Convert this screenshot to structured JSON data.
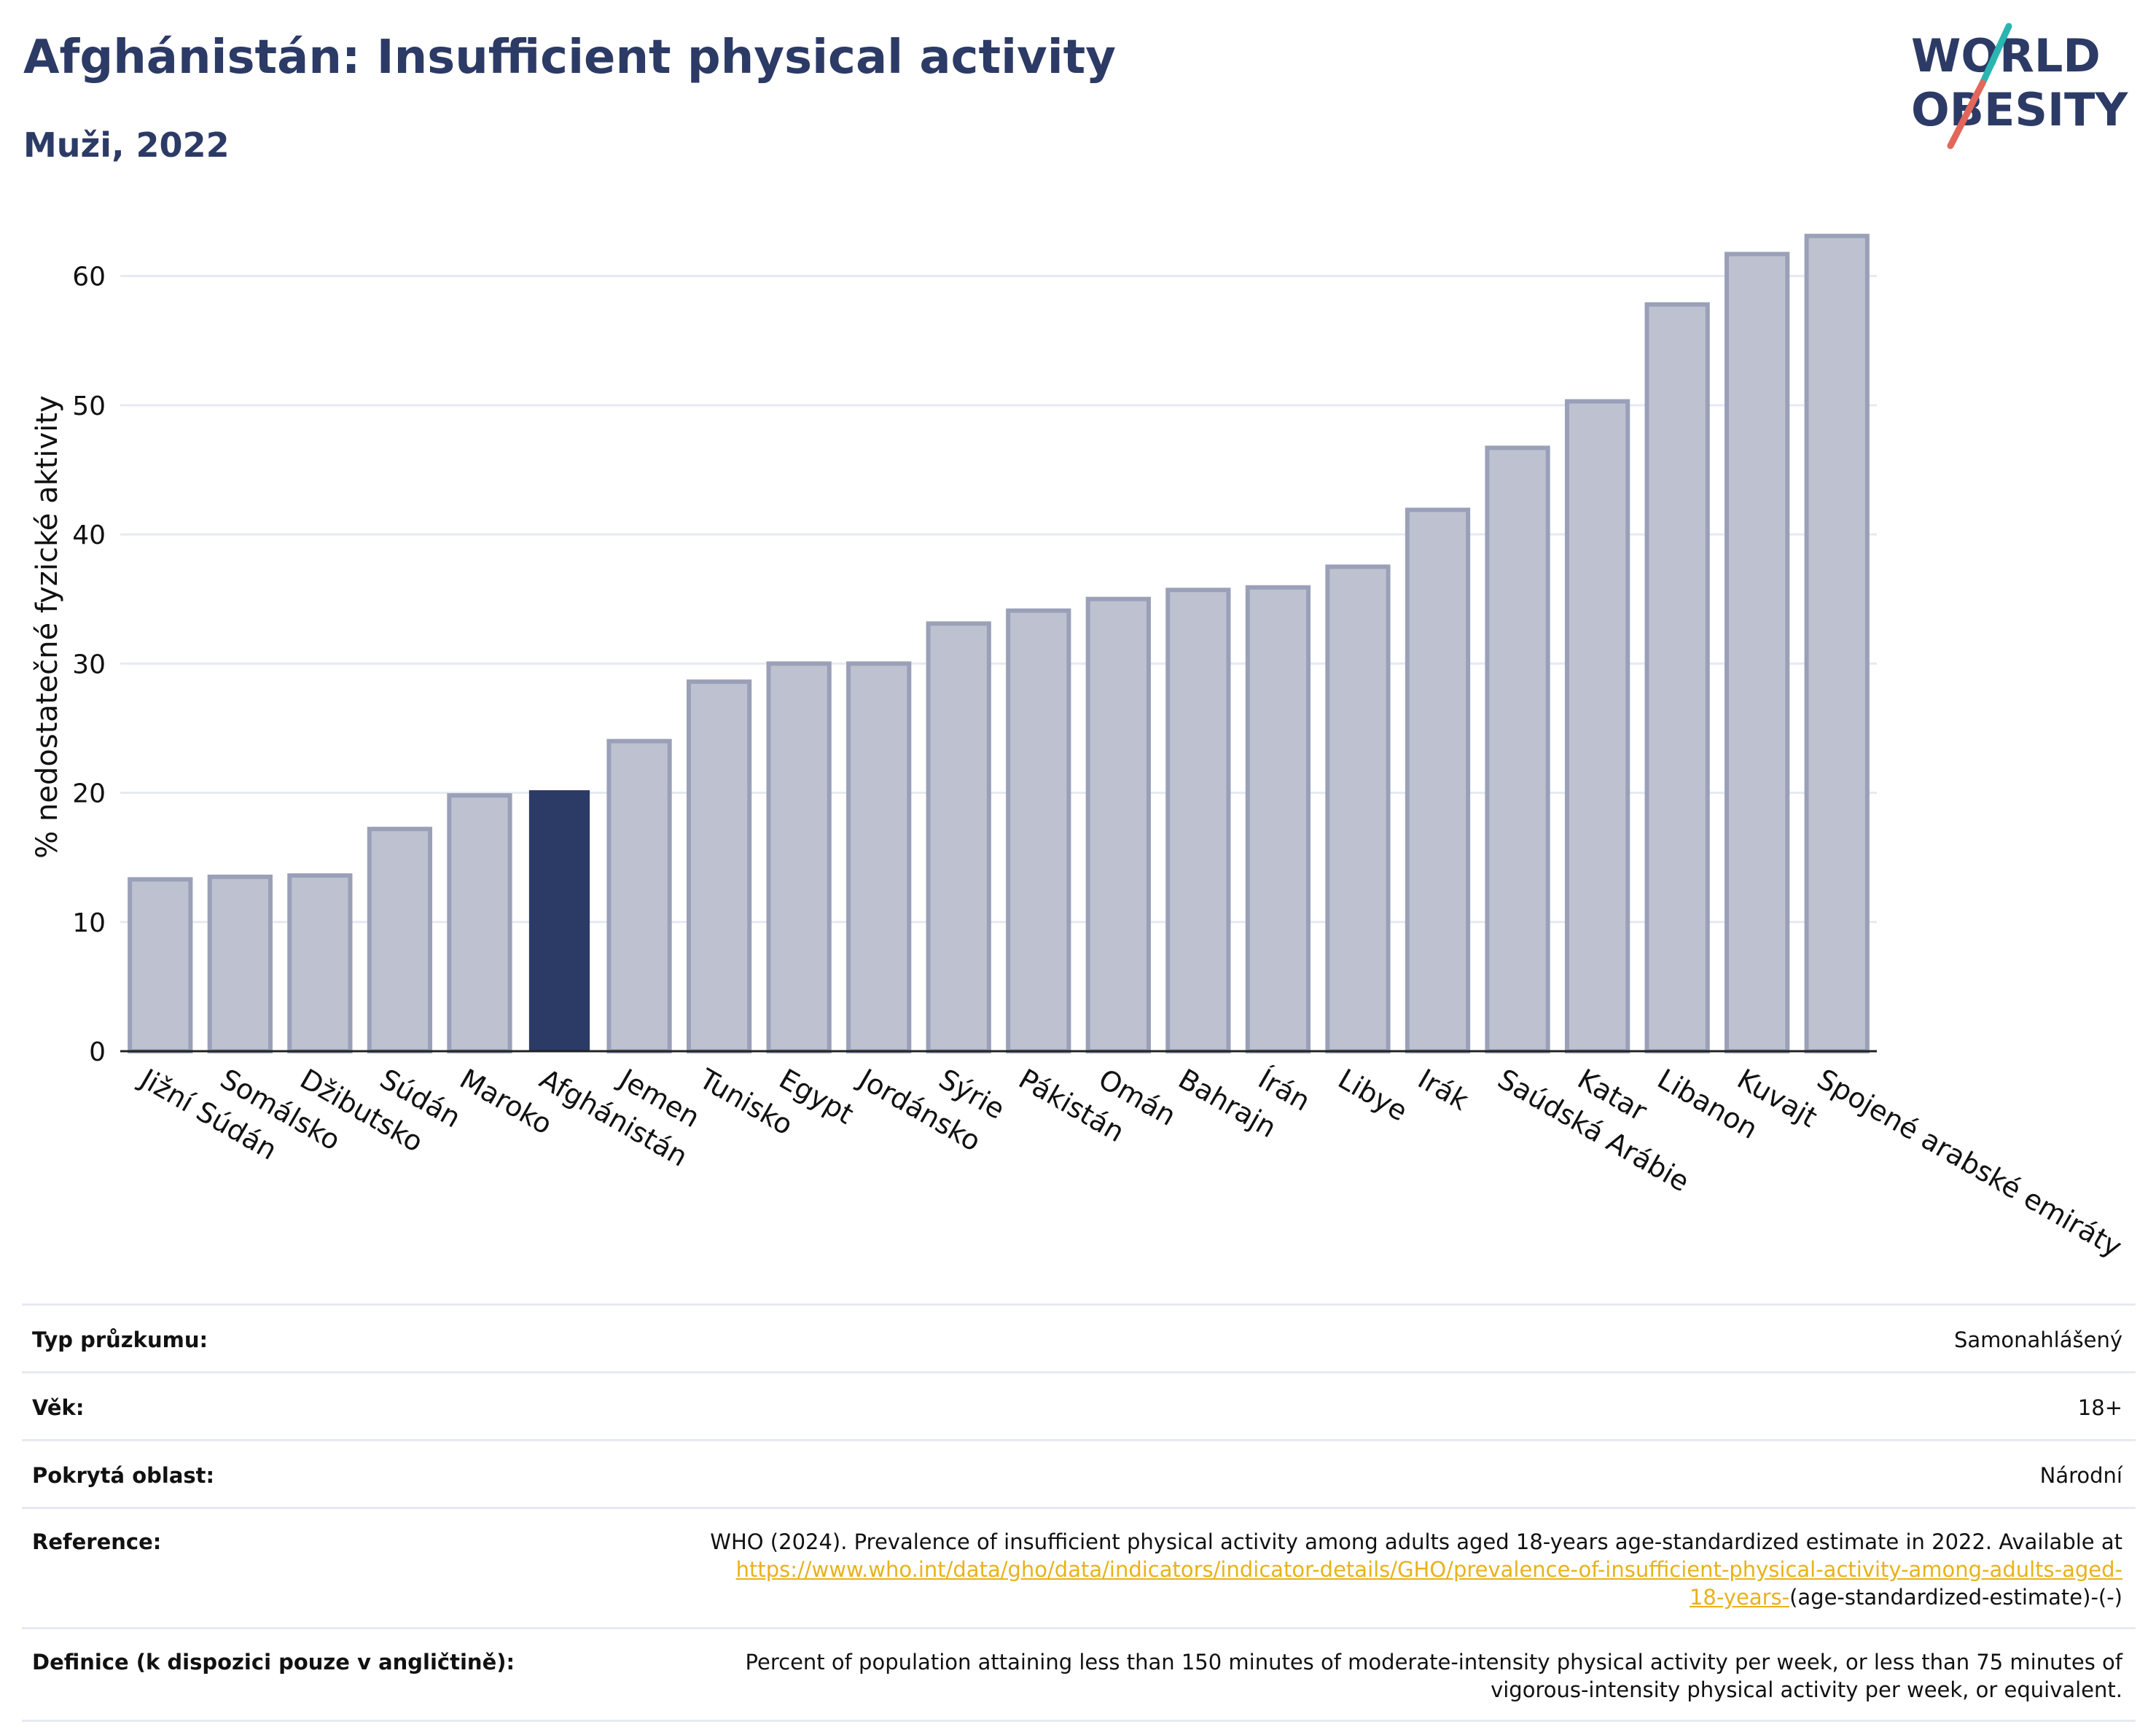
{
  "header": {
    "title": "Afghánistán: Insufficient physical activity",
    "subtitle": "Muži, 2022"
  },
  "logo": {
    "line1": "WORLD",
    "line2": "OBESITY"
  },
  "colors": {
    "highlight": "#2c3a66",
    "bar_fill": "#bec2d0",
    "bar_stroke": "#9aa0b8",
    "grid": "#e6e9f2",
    "link": "#e8b21a",
    "logo_text": "#2c3a66",
    "logo_teal": "#2bb5b0",
    "logo_red": "#e2675a"
  },
  "chart_data": {
    "type": "bar",
    "ylabel": "% nedostatečné fyzické aktivity",
    "xlabel": "",
    "ylim": [
      0,
      65
    ],
    "yticks": [
      0,
      10,
      20,
      30,
      40,
      50,
      60
    ],
    "grid": true,
    "highlight": "Afghánistán",
    "categories": [
      "Jižní Súdán",
      "Somálsko",
      "Džibutsko",
      "Súdán",
      "Maroko",
      "Afghánistán",
      "Jemen",
      "Tunisko",
      "Egypt",
      "Jordánsko",
      "Sýrie",
      "Pákistán",
      "Omán",
      "Bahrajn",
      "Írán",
      "Libye",
      "Irák",
      "Saúdská Arábie",
      "Katar",
      "Libanon",
      "Kuvajt",
      "Spojené arabské emiráty"
    ],
    "values": [
      13.3,
      13.5,
      13.6,
      17.2,
      19.8,
      20.2,
      24.0,
      28.6,
      30.0,
      30.0,
      33.1,
      34.1,
      35.0,
      35.7,
      35.9,
      37.5,
      41.9,
      46.7,
      50.3,
      57.8,
      61.7,
      63.1
    ]
  },
  "info": {
    "survey_label": "Typ průzkumu:",
    "survey_value": "Samonahlášený",
    "age_label": "Věk:",
    "age_value": "18+",
    "area_label": "Pokrytá oblast:",
    "area_value": "Národní",
    "reference_label": "Reference:",
    "reference_text": "WHO (2024). Prevalence of insufficient physical activity among adults aged 18-years age-standardized estimate in 2022. Available at",
    "reference_link_1": "https://www.who.int/data/gho/data/indicators/indicator-details/GHO/prevalence-of-insufficient-physical-activity-among-adults-aged-",
    "reference_link_2": "18-years-",
    "reference_tail": "(age-standardized-estimate)-(-)",
    "definition_label": "Definice (k dispozici pouze v angličtině):",
    "definition_text_1": "Percent of population attaining less than 150 minutes of moderate-intensity physical activity per week, or less than 75 minutes of",
    "definition_text_2": "vigorous-intensity physical activity per week, or equivalent."
  }
}
